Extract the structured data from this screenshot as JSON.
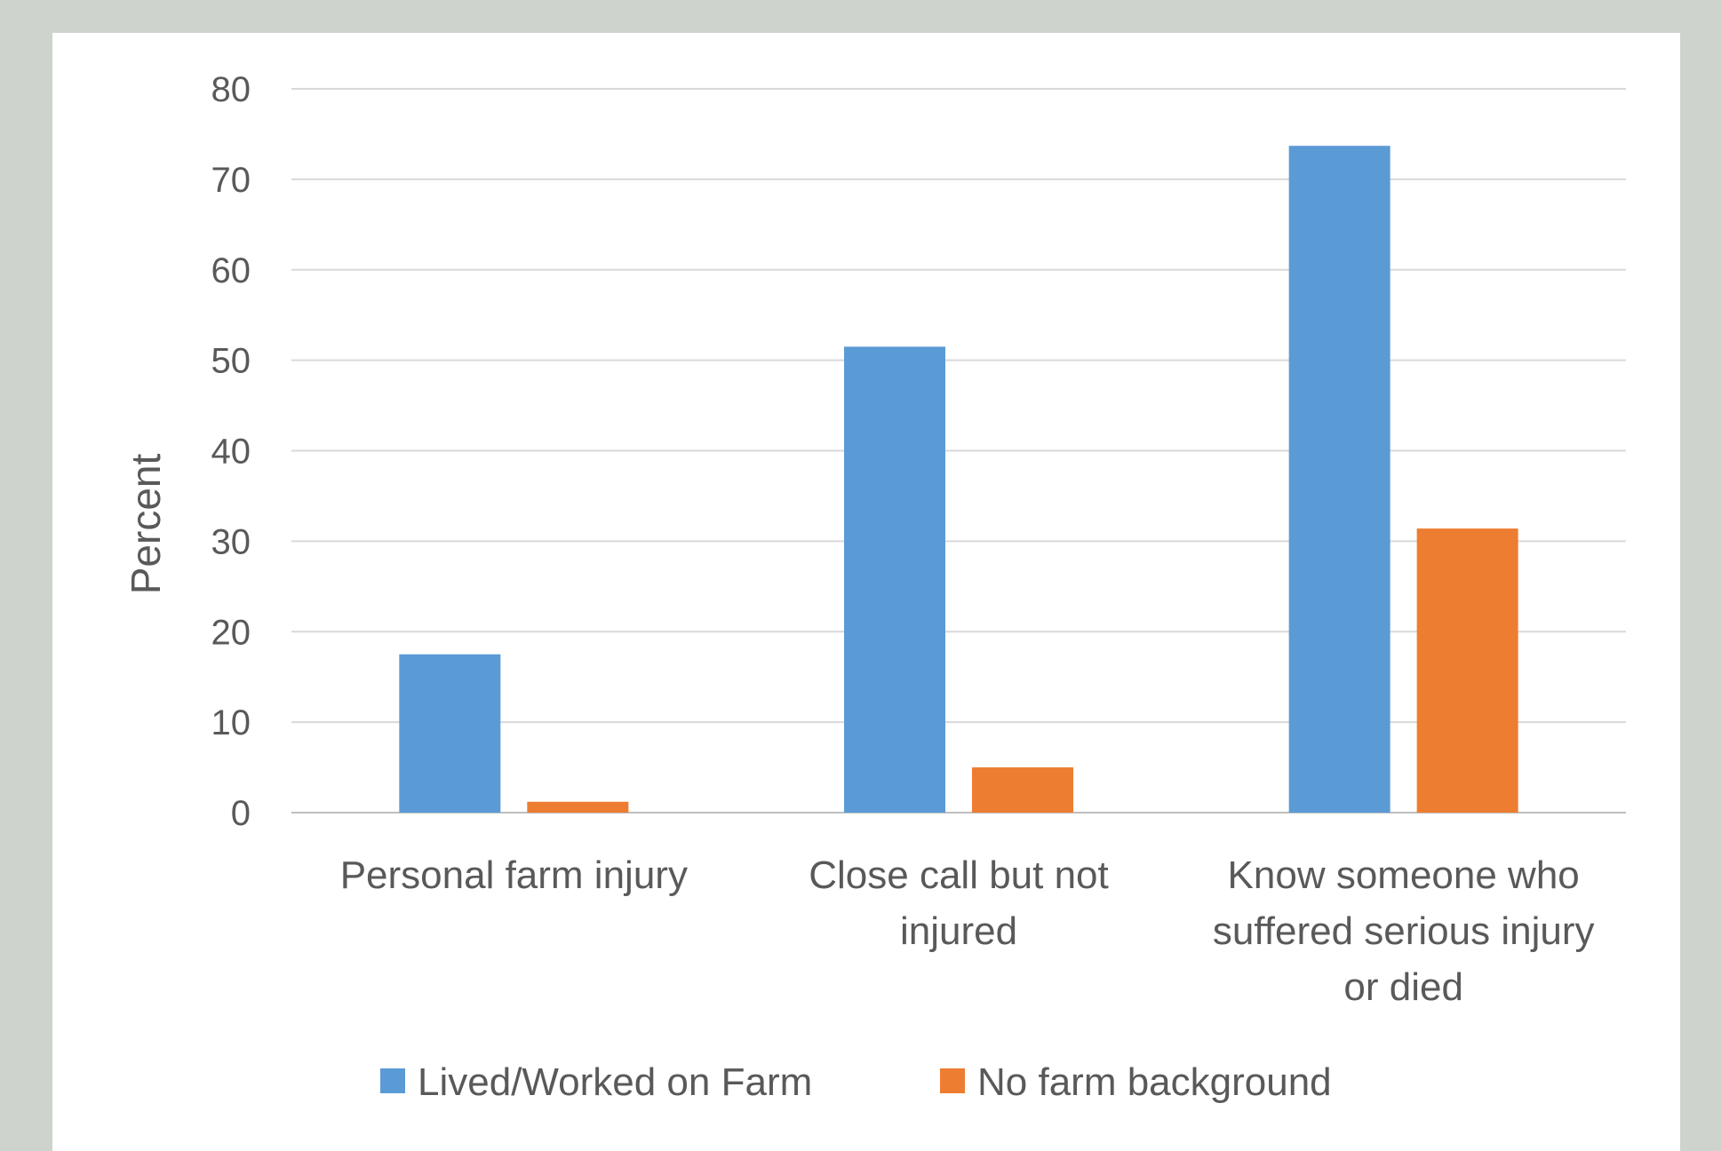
{
  "chart_data": {
    "type": "bar",
    "title": "",
    "xlabel": "",
    "ylabel": "Percent",
    "ylim": [
      0,
      80
    ],
    "yticks": [
      0,
      10,
      20,
      30,
      40,
      50,
      60,
      70,
      80
    ],
    "grid": true,
    "legend_position": "bottom",
    "categories": [
      [
        "Personal farm injury"
      ],
      [
        "Close call but not",
        "injured"
      ],
      [
        "Know someone who",
        "suffered serious injury",
        "or died"
      ]
    ],
    "series": [
      {
        "name": "Lived/Worked on Farm",
        "color": "#5b9bd5",
        "values": [
          17.5,
          51.5,
          73.7
        ]
      },
      {
        "name": "No farm background",
        "color": "#ed7d31",
        "values": [
          1.2,
          5.0,
          31.4
        ]
      }
    ]
  }
}
